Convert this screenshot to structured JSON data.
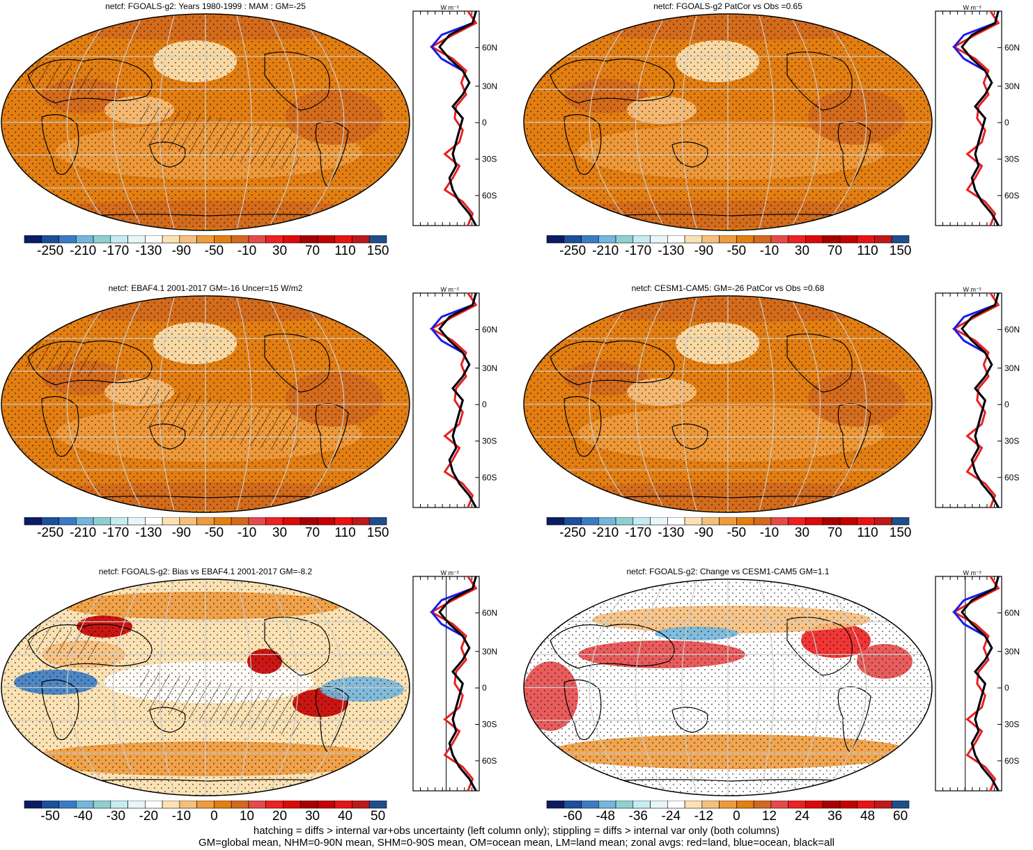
{
  "panels": [
    {
      "title": "netcf: FGOALS-g2: Years 1980-1999 : MAM : GM=-25",
      "colorbar_labels": [
        "-250",
        "-210",
        "-170",
        "-130",
        "-90",
        "-50",
        "-10",
        "30",
        "70",
        "110",
        "150"
      ],
      "zonal_ticks": [
        "-100",
        "-60",
        "-20"
      ],
      "lat_labels": [
        "60N",
        "30N",
        "0",
        "30S",
        "60S"
      ],
      "units": "W m⁻²"
    },
    {
      "title": "netcf: FGOALS-g2 PatCor vs Obs =0.65",
      "colorbar_labels": [
        "-250",
        "-210",
        "-170",
        "-130",
        "-90",
        "-50",
        "-10",
        "30",
        "70",
        "110",
        "150"
      ],
      "zonal_ticks": [
        "-100",
        "-60",
        "-20"
      ],
      "lat_labels": [
        "60N",
        "30N",
        "0",
        "30S",
        "60S"
      ],
      "units": "W m⁻²"
    },
    {
      "title": "netcf: EBAF4.1 2001-2017 GM=-16 Uncer=15 W/m2",
      "colorbar_labels": [
        "-250",
        "-210",
        "-170",
        "-130",
        "-90",
        "-50",
        "-10",
        "30",
        "70",
        "110",
        "150"
      ],
      "zonal_ticks": [
        "-100",
        "-60",
        "-20"
      ],
      "lat_labels": [
        "60N",
        "30N",
        "0",
        "30S",
        "60S"
      ],
      "units": "W m⁻²"
    },
    {
      "title": "netcf: CESM1-CAM5: GM=-26 PatCor vs Obs =0.68",
      "colorbar_labels": [
        "-250",
        "-210",
        "-170",
        "-130",
        "-90",
        "-50",
        "-10",
        "30",
        "70",
        "110",
        "150"
      ],
      "zonal_ticks": [
        "-100",
        "-60",
        "-20"
      ],
      "lat_labels": [
        "60N",
        "30N",
        "0",
        "30S",
        "60S"
      ],
      "units": "W m⁻²"
    },
    {
      "title": "netcf: FGOALS-g2: Bias vs EBAF4.1 2001-2017 GM=-8.2",
      "colorbar_labels": [
        "-50",
        "-40",
        "-30",
        "-20",
        "-10",
        "0",
        "10",
        "20",
        "30",
        "40",
        "50"
      ],
      "zonal_ticks": [
        "-30",
        "-10",
        "10",
        "30"
      ],
      "lat_labels": [
        "60N",
        "30N",
        "0",
        "30S",
        "60S"
      ],
      "units": "W m⁻²"
    },
    {
      "title": "netcf: FGOALS-g2: Change vs CESM1-CAM5 GM=1.1",
      "colorbar_labels": [
        "-60",
        "-48",
        "-36",
        "-24",
        "-12",
        "0",
        "12",
        "24",
        "36",
        "48",
        "60"
      ],
      "zonal_ticks": [
        "-15",
        "-5",
        "5"
      ],
      "lat_labels": [
        "60N",
        "30N",
        "0",
        "30S",
        "60S"
      ],
      "units": "W m⁻²"
    }
  ],
  "footer": {
    "line1": "hatching = diffs > internal var+obs uncertainty (left column only); stippling = diffs > internal var only (both columns)",
    "line2": "GM=global mean, NHM=0-90N mean, SHM=0-90S mean, OM=ocean mean, LM=land mean; zonal avgs: red=land, blue=ocean, black=all"
  },
  "colors": {
    "palette": [
      "#0b1c64",
      "#1c4f9c",
      "#3a7cc4",
      "#74b6dd",
      "#8fcfcf",
      "#c6ecf2",
      "#e8f6f8",
      "#ffffff",
      "#fbe2b4",
      "#f6bf7c",
      "#ee9b3e",
      "#e27e12",
      "#d2691e",
      "#e64a4a",
      "#ef2020",
      "#dd0a0a",
      "#a80000",
      "#c40000",
      "#e81414",
      "#c01818",
      "#1f4e8c"
    ],
    "land": "#e62020",
    "ocean": "#1a1aee",
    "all": "#000000"
  },
  "chart_data": [
    {
      "type": "heatmap",
      "title": "netcf: FGOALS-g2: Years 1980-1999 : MAM : GM=-25",
      "zonal_series": [
        {
          "name": "red=land",
          "values": []
        },
        {
          "name": "blue=ocean",
          "values": []
        },
        {
          "name": "black=all",
          "values": []
        }
      ],
      "colorbar": [
        "-250",
        "-210",
        "-170",
        "-130",
        "-90",
        "-50",
        "-10",
        "30",
        "70",
        "110",
        "150"
      ],
      "zonal_xticks": [
        -100,
        -60,
        -20
      ]
    },
    {
      "type": "heatmap",
      "title": "netcf: FGOALS-g2 PatCor vs Obs =0.65",
      "colorbar": [
        "-250",
        "-210",
        "-170",
        "-130",
        "-90",
        "-50",
        "-10",
        "30",
        "70",
        "110",
        "150"
      ],
      "zonal_xticks": [
        -100,
        -60,
        -20
      ]
    },
    {
      "type": "heatmap",
      "title": "netcf: EBAF4.1 2001-2017 GM=-16 Uncer=15 W/m2",
      "colorbar": [
        "-250",
        "-210",
        "-170",
        "-130",
        "-90",
        "-50",
        "-10",
        "30",
        "70",
        "110",
        "150"
      ],
      "zonal_xticks": [
        -100,
        -60,
        -20
      ]
    },
    {
      "type": "heatmap",
      "title": "netcf: CESM1-CAM5: GM=-26 PatCor vs Obs =0.68",
      "colorbar": [
        "-250",
        "-210",
        "-170",
        "-130",
        "-90",
        "-50",
        "-10",
        "30",
        "70",
        "110",
        "150"
      ],
      "zonal_xticks": [
        -100,
        -60,
        -20
      ]
    },
    {
      "type": "heatmap",
      "title": "netcf: FGOALS-g2: Bias vs EBAF4.1 2001-2017 GM=-8.2",
      "colorbar": [
        "-50",
        "-40",
        "-30",
        "-20",
        "-10",
        "0",
        "10",
        "20",
        "30",
        "40",
        "50"
      ],
      "zonal_xticks": [
        -30,
        -10,
        10,
        30
      ]
    },
    {
      "type": "heatmap",
      "title": "netcf: FGOALS-g2: Change vs CESM1-CAM5 GM=1.1",
      "colorbar": [
        "-60",
        "-48",
        "-36",
        "-24",
        "-12",
        "0",
        "12",
        "24",
        "36",
        "48",
        "60"
      ],
      "zonal_xticks": [
        -15,
        -5,
        5
      ]
    }
  ]
}
